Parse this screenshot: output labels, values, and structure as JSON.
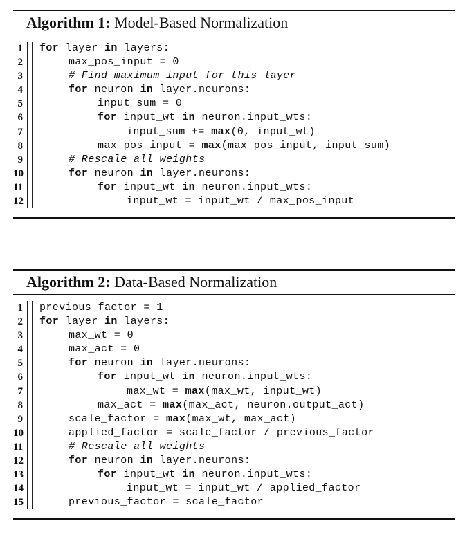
{
  "algorithms": [
    {
      "title_label": "Algorithm 1:",
      "title_name": "Model-Based Normalization",
      "lines": [
        {
          "n": "1",
          "indent": 0,
          "parts": [
            {
              "t": "for",
              "s": "kw"
            },
            {
              "t": " layer "
            },
            {
              "t": "in",
              "s": "kw"
            },
            {
              "t": " layers:"
            }
          ]
        },
        {
          "n": "2",
          "indent": 1,
          "parts": [
            {
              "t": "max_pos_input = 0"
            }
          ]
        },
        {
          "n": "3",
          "indent": 1,
          "parts": [
            {
              "t": "# Find maximum input for this layer",
              "s": "cm"
            }
          ]
        },
        {
          "n": "4",
          "indent": 1,
          "parts": [
            {
              "t": "for",
              "s": "kw"
            },
            {
              "t": " neuron "
            },
            {
              "t": "in",
              "s": "kw"
            },
            {
              "t": " layer.neurons:"
            }
          ]
        },
        {
          "n": "5",
          "indent": 2,
          "parts": [
            {
              "t": "input_sum = 0"
            }
          ]
        },
        {
          "n": "6",
          "indent": 2,
          "parts": [
            {
              "t": "for",
              "s": "kw"
            },
            {
              "t": " input_wt "
            },
            {
              "t": "in",
              "s": "kw"
            },
            {
              "t": " neuron.input_wts:"
            }
          ]
        },
        {
          "n": "7",
          "indent": 3,
          "parts": [
            {
              "t": "input_sum += "
            },
            {
              "t": "max",
              "s": "kw"
            },
            {
              "t": "(0, input_wt)"
            }
          ]
        },
        {
          "n": "8",
          "indent": 2,
          "parts": [
            {
              "t": "max_pos_input = "
            },
            {
              "t": "max",
              "s": "kw"
            },
            {
              "t": "(max_pos_input, input_sum)"
            }
          ]
        },
        {
          "n": "9",
          "indent": 1,
          "parts": [
            {
              "t": "# Rescale all weights",
              "s": "cm"
            }
          ]
        },
        {
          "n": "10",
          "indent": 1,
          "parts": [
            {
              "t": "for",
              "s": "kw"
            },
            {
              "t": " neuron "
            },
            {
              "t": "in",
              "s": "kw"
            },
            {
              "t": " layer.neurons:"
            }
          ]
        },
        {
          "n": "11",
          "indent": 2,
          "parts": [
            {
              "t": "for",
              "s": "kw"
            },
            {
              "t": " input_wt "
            },
            {
              "t": "in",
              "s": "kw"
            },
            {
              "t": " neuron.input_wts:"
            }
          ]
        },
        {
          "n": "12",
          "indent": 3,
          "parts": [
            {
              "t": "input_wt = input_wt / max_pos_input"
            }
          ]
        }
      ]
    },
    {
      "title_label": "Algorithm 2:",
      "title_name": "Data-Based Normalization",
      "lines": [
        {
          "n": "1",
          "indent": 0,
          "parts": [
            {
              "t": "previous_factor = 1"
            }
          ]
        },
        {
          "n": "2",
          "indent": 0,
          "parts": [
            {
              "t": "for",
              "s": "kw"
            },
            {
              "t": " layer "
            },
            {
              "t": "in",
              "s": "kw"
            },
            {
              "t": " layers:"
            }
          ]
        },
        {
          "n": "3",
          "indent": 1,
          "parts": [
            {
              "t": "max_wt = 0"
            }
          ]
        },
        {
          "n": "4",
          "indent": 1,
          "parts": [
            {
              "t": "max_act = 0"
            }
          ]
        },
        {
          "n": "5",
          "indent": 1,
          "parts": [
            {
              "t": "for",
              "s": "kw"
            },
            {
              "t": " neuron "
            },
            {
              "t": "in",
              "s": "kw"
            },
            {
              "t": " layer.neurons:"
            }
          ]
        },
        {
          "n": "6",
          "indent": 2,
          "parts": [
            {
              "t": "for",
              "s": "kw"
            },
            {
              "t": " input_wt "
            },
            {
              "t": "in",
              "s": "kw"
            },
            {
              "t": " neuron.input_wts:"
            }
          ]
        },
        {
          "n": "7",
          "indent": 3,
          "parts": [
            {
              "t": "max_wt = "
            },
            {
              "t": "max",
              "s": "kw"
            },
            {
              "t": "(max_wt, input_wt)"
            }
          ]
        },
        {
          "n": "8",
          "indent": 2,
          "parts": [
            {
              "t": "max_act = "
            },
            {
              "t": "max",
              "s": "kw"
            },
            {
              "t": "(max_act, neuron.output_act)"
            }
          ]
        },
        {
          "n": "9",
          "indent": 1,
          "parts": [
            {
              "t": "scale_factor = "
            },
            {
              "t": "max",
              "s": "kw"
            },
            {
              "t": "(max_wt, max_act)"
            }
          ]
        },
        {
          "n": "10",
          "indent": 1,
          "parts": [
            {
              "t": "applied_factor = scale_factor / previous_factor"
            }
          ]
        },
        {
          "n": "11",
          "indent": 1,
          "parts": [
            {
              "t": "# Rescale all weights",
              "s": "cm"
            }
          ]
        },
        {
          "n": "12",
          "indent": 1,
          "parts": [
            {
              "t": "for",
              "s": "kw"
            },
            {
              "t": " neuron "
            },
            {
              "t": "in",
              "s": "kw"
            },
            {
              "t": " layer.neurons:"
            }
          ]
        },
        {
          "n": "13",
          "indent": 2,
          "parts": [
            {
              "t": "for",
              "s": "kw"
            },
            {
              "t": " input_wt "
            },
            {
              "t": "in",
              "s": "kw"
            },
            {
              "t": " neuron.input_wts:"
            }
          ]
        },
        {
          "n": "14",
          "indent": 3,
          "parts": [
            {
              "t": "input_wt = input_wt / applied_factor"
            }
          ]
        },
        {
          "n": "15",
          "indent": 1,
          "parts": [
            {
              "t": "previous_factor = scale_factor"
            }
          ]
        }
      ]
    }
  ]
}
